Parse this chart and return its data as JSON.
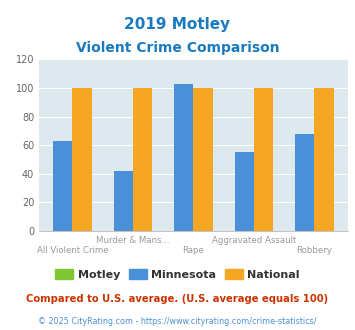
{
  "title_line1": "2019 Motley",
  "title_line2": "Violent Crime Comparison",
  "title_color": "#1a7abf",
  "cat_labels_top": [
    "",
    "Murder & Mans...",
    "",
    "Aggravated Assault",
    ""
  ],
  "cat_labels_bot": [
    "All Violent Crime",
    "",
    "Rape",
    "",
    "Robbery"
  ],
  "motley_values": [
    null,
    null,
    null,
    null,
    null
  ],
  "minnesota_values": [
    63,
    42,
    103,
    55,
    68
  ],
  "national_values": [
    100,
    100,
    100,
    100,
    100
  ],
  "motley_color": "#7dc832",
  "minnesota_color": "#4a90d9",
  "national_color": "#f5a623",
  "ylim": [
    0,
    120
  ],
  "yticks": [
    0,
    20,
    40,
    60,
    80,
    100,
    120
  ],
  "bg_color": "#dde8ef",
  "legend_labels": [
    "Motley",
    "Minnesota",
    "National"
  ],
  "footnote1": "Compared to U.S. average. (U.S. average equals 100)",
  "footnote2": "© 2025 CityRating.com - https://www.cityrating.com/crime-statistics/",
  "footnote1_color": "#cc3300",
  "footnote2_color": "#4a90d9"
}
